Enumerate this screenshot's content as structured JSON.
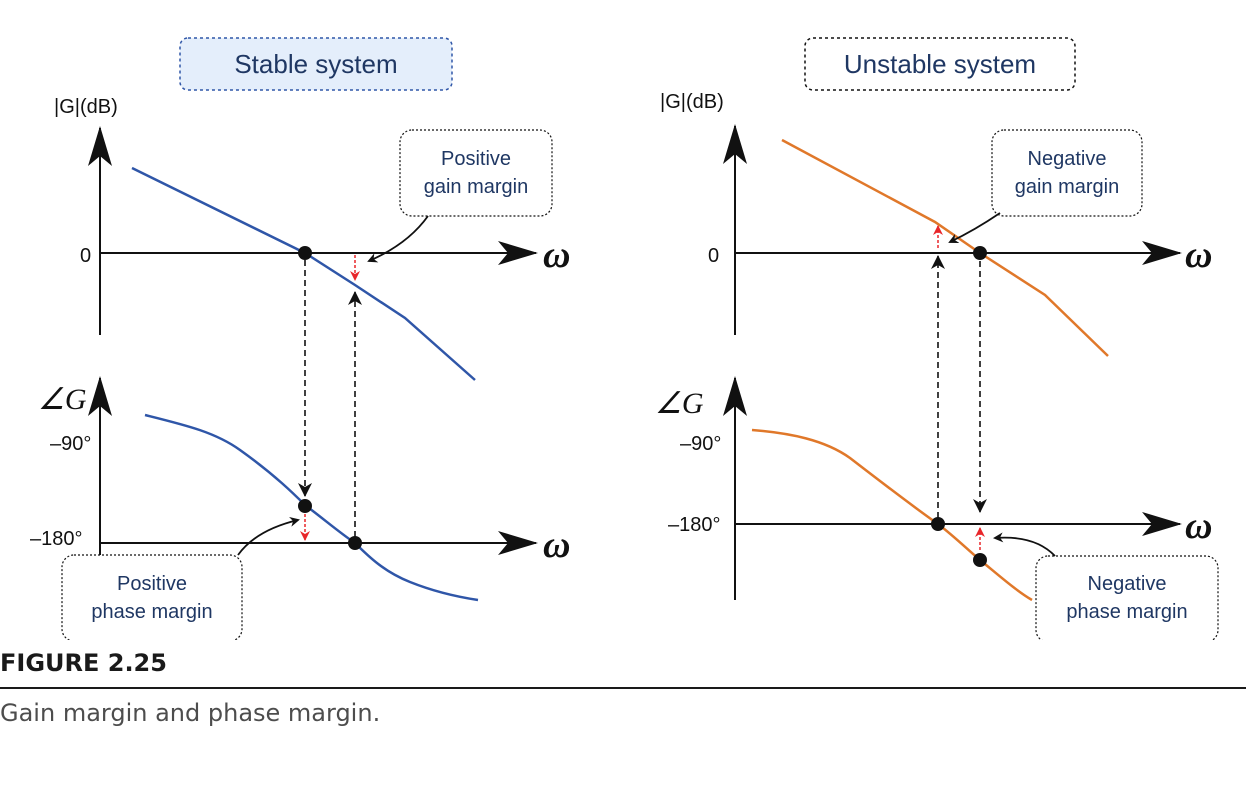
{
  "stable": {
    "title": "Stable system",
    "mag_axis_label": "|G|(dB)",
    "mag_zero_label": "0",
    "phase_axis_label": "∠G",
    "phase_tick_90": "–90°",
    "phase_tick_180": "–180°",
    "omega_label": "ω",
    "gain_note_line1": "Positive",
    "gain_note_line2": "gain margin",
    "phase_note_line1": "Positive",
    "phase_note_line2": "phase margin",
    "curve_color": "#2f56a8"
  },
  "unstable": {
    "title": "Unstable system",
    "mag_axis_label": "|G|(dB)",
    "mag_zero_label": "0",
    "phase_axis_label": "∠G",
    "phase_tick_90": "–90°",
    "phase_tick_180": "–180°",
    "omega_label": "ω",
    "gain_note_line1": "Negative",
    "gain_note_line2": "gain margin",
    "phase_note_line1": "Negative",
    "phase_note_line2": "phase margin",
    "curve_color": "#e0782a"
  },
  "figure_label": "FIGURE 2.25",
  "caption": "Gain margin and phase margin.",
  "colors": {
    "margin_arrow": "#e8262a",
    "box_fill": "#e4eefb"
  }
}
